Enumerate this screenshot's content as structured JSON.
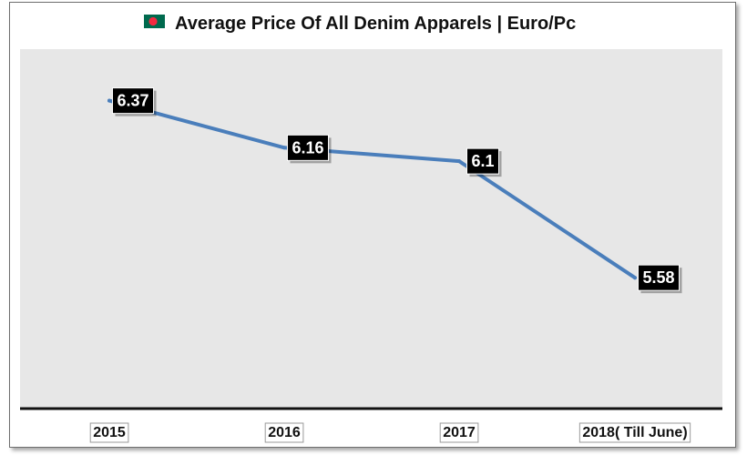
{
  "chart_data": {
    "type": "line",
    "title": "Average Price Of All Denim Apparels | Euro/Pc",
    "categories": [
      "2015",
      "2016",
      "2017",
      "2018( Till June)"
    ],
    "series": [
      {
        "values": [
          6.37,
          6.16,
          6.1,
          5.58
        ]
      }
    ],
    "data_labels": [
      "6.37",
      "6.16",
      "6.1",
      "5.58"
    ],
    "xlabel": "",
    "ylabel": "",
    "ylim": [
      5.0,
      6.6
    ],
    "grid": false,
    "legend": "none",
    "title_icon": "bangladesh-flag-icon",
    "colors": {
      "line": "#4a7ebb",
      "plot_background": "#e7e7e7",
      "label_background": "#000000",
      "label_text": "#ffffff",
      "flag_green": "#006a4e",
      "flag_red": "#f42a41"
    }
  }
}
